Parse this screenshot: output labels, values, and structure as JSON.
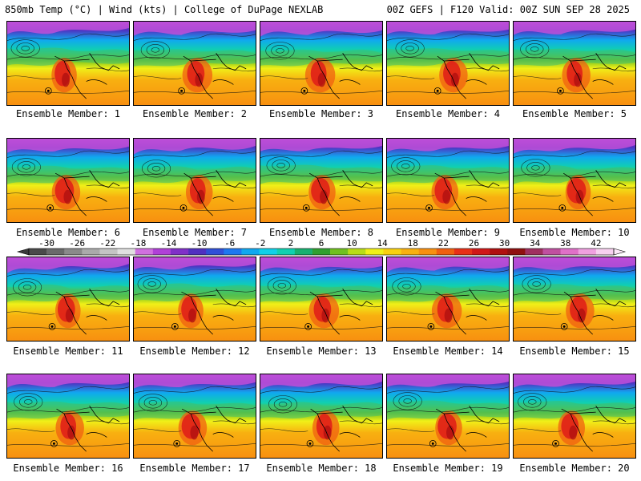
{
  "header": {
    "left": "850mb Temp (°C) | Wind (kts) | College of DuPage NEXLAB",
    "right": "00Z GEFS | F120 Valid: 00Z SUN SEP 28 2025"
  },
  "members": [
    "Ensemble Member: 1",
    "Ensemble Member: 2",
    "Ensemble Member: 3",
    "Ensemble Member: 4",
    "Ensemble Member: 5",
    "Ensemble Member: 6",
    "Ensemble Member: 7",
    "Ensemble Member: 8",
    "Ensemble Member: 9",
    "Ensemble Member: 10",
    "Ensemble Member: 11",
    "Ensemble Member: 12",
    "Ensemble Member: 13",
    "Ensemble Member: 14",
    "Ensemble Member: 15",
    "Ensemble Member: 16",
    "Ensemble Member: 17",
    "Ensemble Member: 18",
    "Ensemble Member: 19",
    "Ensemble Member: 20"
  ],
  "colorbar": {
    "ticks": [
      "-30",
      "-26",
      "-22",
      "-18",
      "-14",
      "-10",
      "-6",
      "-2",
      "2",
      "6",
      "10",
      "14",
      "18",
      "22",
      "26",
      "30",
      "34",
      "38",
      "42"
    ],
    "colors": [
      "#4a4a4a",
      "#6a6a6a",
      "#8a8a8a",
      "#aaaaaa",
      "#c4c4c4",
      "#e0e0e0",
      "#d070e0",
      "#b040d8",
      "#8030c8",
      "#5030c0",
      "#3050d8",
      "#1e78f0",
      "#10a8f0",
      "#10d0e8",
      "#10d0b0",
      "#18b070",
      "#30a030",
      "#70c020",
      "#b8dc18",
      "#f0f018",
      "#f8d010",
      "#f8b010",
      "#f89010",
      "#f06010",
      "#e83018",
      "#d01818",
      "#b01010",
      "#901010",
      "#a03060",
      "#c050a0",
      "#e070c8",
      "#f0a0e0",
      "#f8d0f0"
    ]
  }
}
